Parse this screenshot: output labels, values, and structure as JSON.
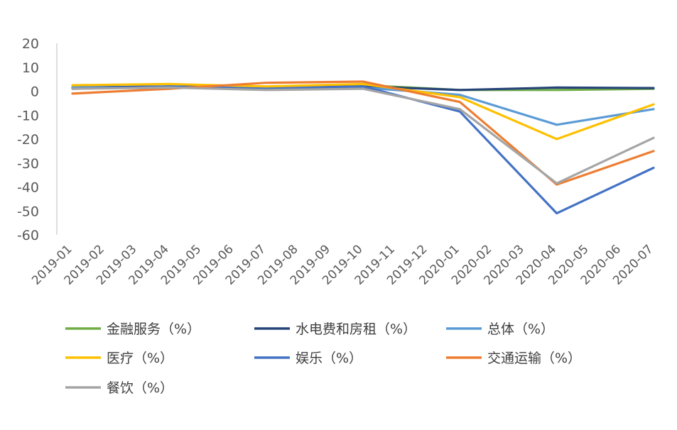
{
  "chart_data": {
    "type": "line",
    "title": "",
    "xlabel": "",
    "ylabel": "",
    "ylim": [
      -60,
      20
    ],
    "yticks": [
      20,
      10,
      0,
      -10,
      -20,
      -30,
      -40,
      -50,
      -60
    ],
    "grid": false,
    "legend_position": "bottom",
    "categories": [
      "2019-01",
      "2019-02",
      "2019-03",
      "2019-04",
      "2019-05",
      "2019-06",
      "2019-07",
      "2019-08",
      "2019-09",
      "2019-10",
      "2019-11",
      "2019-12",
      "2020-01",
      "2020-02",
      "2020-03",
      "2020-04",
      "2020-05",
      "2020-06",
      "2020-07"
    ],
    "series": [
      {
        "name": "金融服务（%）",
        "color": "#70ad47",
        "values": [
          1.5,
          null,
          null,
          2.0,
          null,
          null,
          1.5,
          null,
          null,
          2.5,
          null,
          null,
          0.5,
          null,
          null,
          0.5,
          null,
          null,
          1.0
        ]
      },
      {
        "name": "水电费和房租（%）",
        "color": "#264478",
        "values": [
          1.5,
          null,
          null,
          2.0,
          null,
          null,
          1.5,
          null,
          null,
          2.0,
          null,
          null,
          0.5,
          null,
          null,
          1.5,
          null,
          null,
          1.3
        ]
      },
      {
        "name": "总体（%）",
        "color": "#5b9bd5",
        "values": [
          1.5,
          null,
          null,
          1.5,
          null,
          null,
          1.5,
          null,
          null,
          1.5,
          null,
          null,
          -1.5,
          null,
          null,
          -14.0,
          null,
          null,
          -7.5
        ]
      },
      {
        "name": "医疗（%）",
        "color": "#ffc000",
        "values": [
          2.5,
          null,
          null,
          3.0,
          null,
          null,
          2.0,
          null,
          null,
          3.0,
          null,
          null,
          -2.5,
          null,
          null,
          -20.0,
          null,
          null,
          -5.5
        ]
      },
      {
        "name": "娱乐（%）",
        "color": "#4472c4",
        "values": [
          1.0,
          null,
          null,
          2.0,
          null,
          null,
          1.0,
          null,
          null,
          2.0,
          null,
          null,
          -8.5,
          null,
          null,
          -51.0,
          null,
          null,
          -32.0
        ]
      },
      {
        "name": "交通运输（%）",
        "color": "#ed7d31",
        "values": [
          -1.0,
          null,
          null,
          1.0,
          null,
          null,
          3.5,
          null,
          null,
          4.0,
          null,
          null,
          -4.5,
          null,
          null,
          -39.0,
          null,
          null,
          -25.0
        ]
      },
      {
        "name": "餐饮（%）",
        "color": "#a5a5a5",
        "values": [
          1.0,
          null,
          null,
          1.5,
          null,
          null,
          0.5,
          null,
          null,
          1.0,
          null,
          null,
          -7.5,
          null,
          null,
          -38.5,
          null,
          null,
          -19.5
        ]
      }
    ]
  }
}
